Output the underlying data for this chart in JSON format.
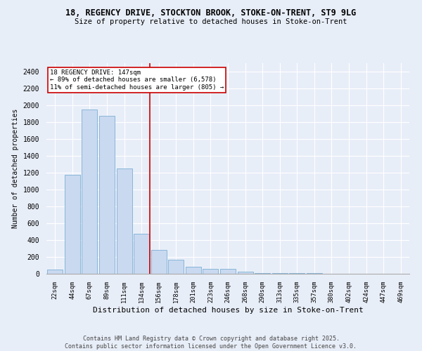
{
  "title_line1": "18, REGENCY DRIVE, STOCKTON BROOK, STOKE-ON-TRENT, ST9 9LG",
  "title_line2": "Size of property relative to detached houses in Stoke-on-Trent",
  "xlabel": "Distribution of detached houses by size in Stoke-on-Trent",
  "ylabel": "Number of detached properties",
  "categories": [
    "22sqm",
    "44sqm",
    "67sqm",
    "89sqm",
    "111sqm",
    "134sqm",
    "156sqm",
    "178sqm",
    "201sqm",
    "223sqm",
    "246sqm",
    "268sqm",
    "290sqm",
    "313sqm",
    "335sqm",
    "357sqm",
    "380sqm",
    "402sqm",
    "424sqm",
    "447sqm",
    "469sqm"
  ],
  "values": [
    50,
    1175,
    1950,
    1875,
    1250,
    475,
    280,
    170,
    80,
    55,
    55,
    25,
    10,
    10,
    5,
    5,
    3,
    2,
    1,
    1,
    1
  ],
  "bar_color": "#c9d9f0",
  "bar_edge_color": "#7bafd4",
  "bg_color": "#e8eef8",
  "grid_color": "#ffffff",
  "vline_x_index": 5.5,
  "vline_color": "#cc0000",
  "annotation_text": "18 REGENCY DRIVE: 147sqm\n← 89% of detached houses are smaller (6,578)\n11% of semi-detached houses are larger (805) →",
  "annotation_box_color": "#ffffff",
  "annotation_box_edge_color": "#cc0000",
  "footer_line1": "Contains HM Land Registry data © Crown copyright and database right 2025.",
  "footer_line2": "Contains public sector information licensed under the Open Government Licence v3.0.",
  "ylim": [
    0,
    2500
  ],
  "yticks": [
    0,
    200,
    400,
    600,
    800,
    1000,
    1200,
    1400,
    1600,
    1800,
    2000,
    2200,
    2400
  ]
}
